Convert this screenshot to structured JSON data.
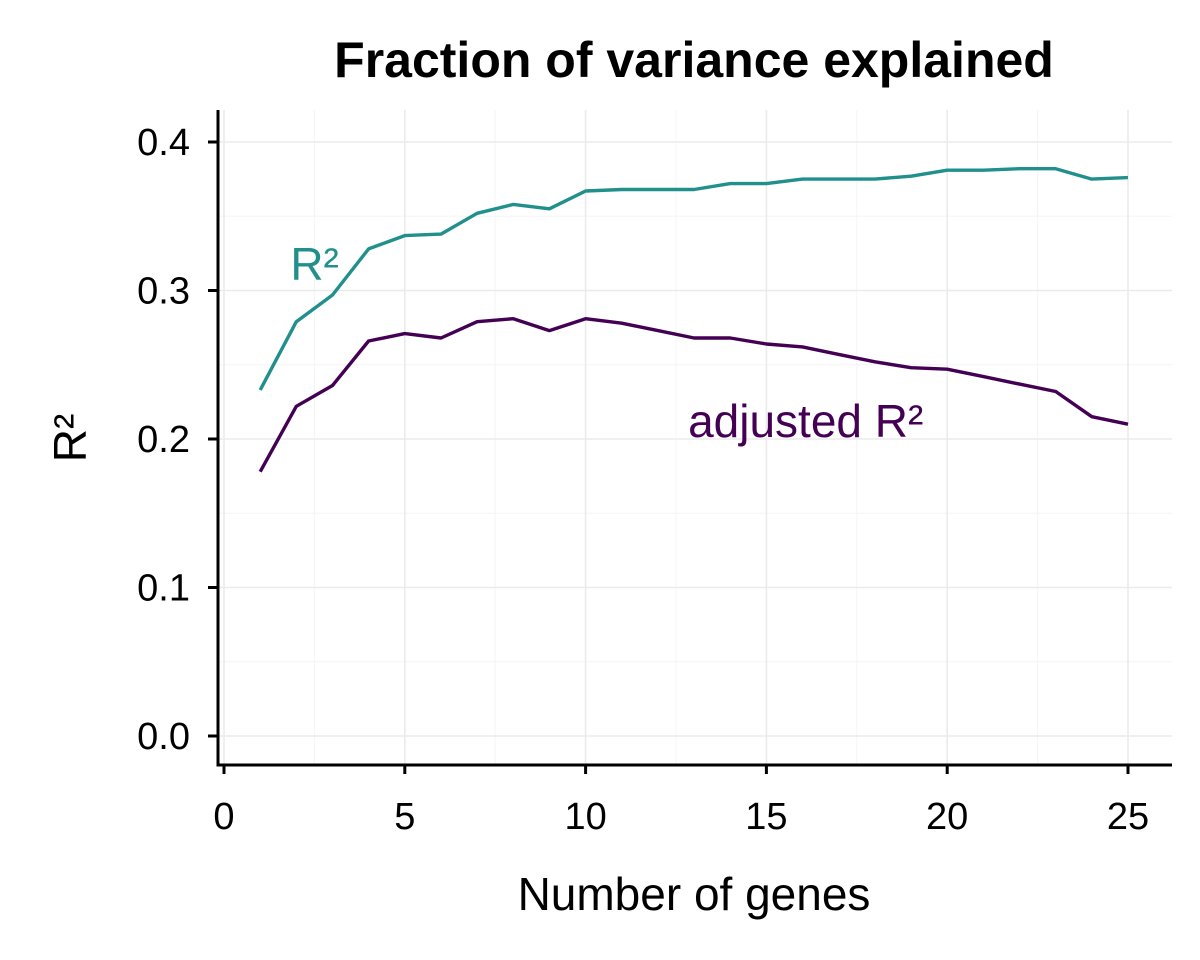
{
  "chart_data": {
    "type": "line",
    "title": "Fraction of variance explained",
    "xlabel": "Number of genes",
    "ylabel": "R²",
    "xlim": [
      0,
      25
    ],
    "ylim": [
      0,
      0.4
    ],
    "x_ticks": [
      0,
      5,
      10,
      15,
      20,
      25
    ],
    "y_ticks": [
      0.0,
      0.1,
      0.2,
      0.3,
      0.4
    ],
    "x_tick_labels": [
      "0",
      "5",
      "10",
      "15",
      "20",
      "25"
    ],
    "y_tick_labels": [
      "0.0",
      "0.1",
      "0.2",
      "0.3",
      "0.4"
    ],
    "grid": true,
    "x": [
      1,
      2,
      3,
      4,
      5,
      6,
      7,
      8,
      9,
      10,
      11,
      12,
      13,
      14,
      15,
      16,
      17,
      18,
      19,
      20,
      21,
      22,
      23,
      24,
      25
    ],
    "series": [
      {
        "name": "R²",
        "color": "#21908c",
        "values": [
          0.233,
          0.279,
          0.297,
          0.328,
          0.337,
          0.338,
          0.352,
          0.358,
          0.355,
          0.367,
          0.368,
          0.368,
          0.368,
          0.372,
          0.372,
          0.375,
          0.375,
          0.375,
          0.377,
          0.381,
          0.381,
          0.382,
          0.382,
          0.375,
          0.376
        ],
        "label_anchor": [
          2.0,
          0.318
        ]
      },
      {
        "name": "adjusted R²",
        "color": "#440154",
        "values": [
          0.178,
          0.222,
          0.236,
          0.266,
          0.271,
          0.268,
          0.279,
          0.281,
          0.273,
          0.281,
          0.278,
          0.273,
          0.268,
          0.268,
          0.264,
          0.262,
          0.257,
          0.252,
          0.248,
          0.247,
          0.242,
          0.237,
          0.232,
          0.215,
          0.21
        ],
        "label_anchor": [
          13.0,
          0.212
        ]
      }
    ]
  }
}
